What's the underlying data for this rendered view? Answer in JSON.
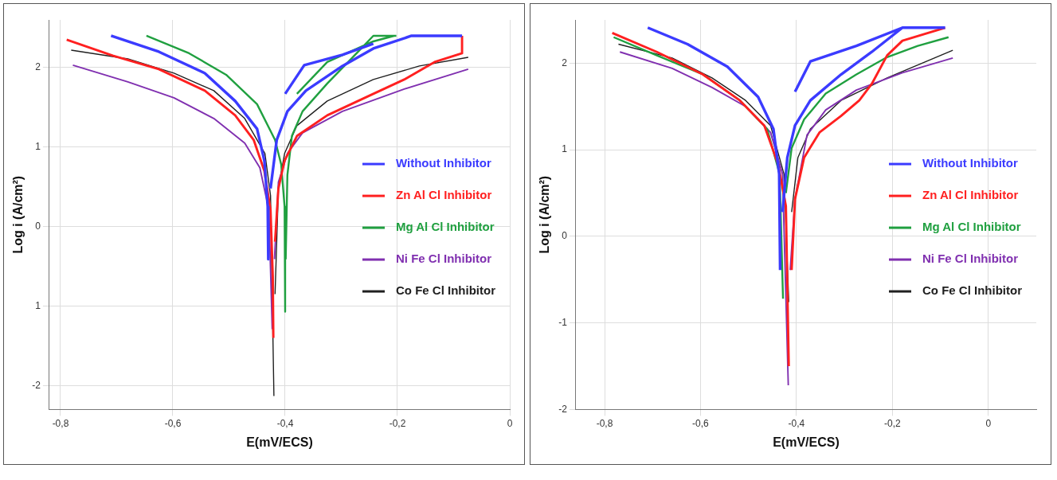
{
  "chart_data": [
    {
      "type": "line",
      "xlabel": "E(mV/ECS)",
      "ylabel": "Log i (A/cm²)",
      "xlim": [
        -0.82,
        0
      ],
      "ylim": [
        -2.3,
        2.6
      ],
      "xticks": [
        {
          "value": -0.8,
          "label": "-0,8"
        },
        {
          "value": -0.6,
          "label": "-0,6"
        },
        {
          "value": -0.4,
          "label": "-0,4"
        },
        {
          "value": -0.2,
          "label": "-0,2"
        },
        0
      ],
      "yticks": [
        2,
        1,
        0,
        {
          "value": -1,
          "label": "1"
        },
        -2
      ],
      "grid": true,
      "legend": "right",
      "series": [
        {
          "name": "Without Inhibitor",
          "color": "#3b3bff",
          "x": [
            -0.71,
            -0.625,
            -0.543,
            -0.489,
            -0.45,
            -0.437,
            -0.431,
            -0.43,
            null,
            -0.426,
            -0.415,
            -0.396,
            -0.363,
            -0.298,
            -0.243,
            -0.175,
            -0.085,
            null,
            -0.4,
            -0.366,
            -0.298,
            -0.243
          ],
          "values": [
            2.4,
            2.2,
            1.93,
            1.58,
            1.23,
            0.83,
            0.25,
            -0.41,
            null,
            0.48,
            1.09,
            1.45,
            1.71,
            2.02,
            2.24,
            2.4,
            2.4,
            null,
            1.67,
            2.03,
            2.16,
            2.3
          ]
        },
        {
          "name": "Zn Al Cl Inhibitor",
          "color": "#ff2020",
          "x": [
            -0.789,
            -0.707,
            -0.625,
            -0.543,
            -0.489,
            -0.456,
            -0.437,
            -0.426,
            -0.422,
            -0.421,
            null,
            -0.418,
            -0.412,
            -0.401,
            -0.379,
            -0.325,
            -0.243,
            -0.188,
            -0.134,
            -0.085,
            -0.085
          ],
          "values": [
            2.35,
            2.15,
            1.98,
            1.71,
            1.4,
            1.09,
            0.7,
            0.21,
            -0.63,
            -1.4,
            null,
            -0.19,
            0.48,
            0.83,
            1.14,
            1.4,
            1.67,
            1.85,
            2.07,
            2.18,
            2.4
          ]
        },
        {
          "name": "Mg Al Cl Inhibitor",
          "color": "#20a040",
          "x": [
            -0.647,
            -0.571,
            -0.505,
            -0.45,
            -0.418,
            -0.407,
            -0.401,
            -0.4,
            null,
            -0.399,
            -0.396,
            -0.388,
            -0.369,
            -0.325,
            -0.27,
            -0.243,
            -0.202,
            null,
            -0.379,
            -0.325,
            -0.243,
            -0.206
          ],
          "values": [
            2.4,
            2.18,
            1.91,
            1.54,
            1.09,
            0.78,
            0.25,
            -1.07,
            null,
            -0.41,
            0.65,
            1.14,
            1.45,
            1.8,
            2.2,
            2.4,
            2.4,
            null,
            1.67,
            2.07,
            2.33,
            2.4
          ]
        },
        {
          "name": "Ni Fe Cl Inhibitor",
          "color": "#8030b0",
          "x": [
            -0.778,
            -0.68,
            -0.598,
            -0.527,
            -0.472,
            -0.445,
            -0.429,
            -0.423,
            null,
            -0.419,
            -0.412,
            -0.396,
            -0.369,
            -0.298,
            -0.188,
            -0.074
          ],
          "values": [
            2.03,
            1.82,
            1.62,
            1.36,
            1.05,
            0.74,
            0.21,
            -1.29,
            null,
            -0.41,
            0.56,
            0.92,
            1.18,
            1.45,
            1.73,
            1.98
          ]
        },
        {
          "name": "Co Fe Cl Inhibitor",
          "color": "#202020",
          "x": [
            -0.781,
            -0.68,
            -0.598,
            -0.527,
            -0.472,
            -0.436,
            -0.426,
            -0.42,
            null,
            -0.418,
            -0.412,
            -0.401,
            -0.379,
            -0.325,
            -0.243,
            -0.161,
            -0.074
          ],
          "values": [
            2.22,
            2.11,
            1.93,
            1.71,
            1.36,
            0.92,
            0.39,
            -2.13,
            null,
            -0.85,
            0.48,
            0.92,
            1.27,
            1.58,
            1.85,
            2.02,
            2.13
          ]
        }
      ]
    },
    {
      "type": "line",
      "xlabel": "E(mV/ECS)",
      "ylabel": "Log i (A/cm²)",
      "xlim": [
        -0.86,
        0.1
      ],
      "ylim": [
        -2,
        2.5
      ],
      "xticks": [
        {
          "value": -0.8,
          "label": "-0,8"
        },
        {
          "value": -0.6,
          "label": "-0,6"
        },
        {
          "value": -0.4,
          "label": "-0,4"
        },
        {
          "value": -0.2,
          "label": "-0,2"
        },
        0
      ],
      "yticks": [
        2,
        1,
        0,
        -1,
        -2
      ],
      "grid": true,
      "legend": "right",
      "series": [
        {
          "name": "Without Inhibitor",
          "color": "#3b3bff",
          "x": [
            -0.71,
            -0.627,
            -0.544,
            -0.48,
            -0.448,
            -0.436,
            -0.434,
            null,
            -0.429,
            -0.419,
            -0.403,
            -0.371,
            -0.307,
            -0.243,
            -0.179,
            -0.09,
            null,
            -0.403,
            -0.371,
            -0.275,
            -0.179
          ],
          "values": [
            2.41,
            2.22,
            1.96,
            1.61,
            1.24,
            0.72,
            -0.39,
            null,
            0.28,
            0.91,
            1.28,
            1.57,
            1.87,
            2.13,
            2.41,
            2.41,
            null,
            1.67,
            2.02,
            2.2,
            2.41
          ]
        },
        {
          "name": "Zn Al Cl Inhibitor",
          "color": "#ff2020",
          "x": [
            -0.784,
            -0.691,
            -0.595,
            -0.518,
            -0.467,
            -0.438,
            -0.422,
            -0.416,
            null,
            -0.41,
            -0.403,
            -0.384,
            -0.352,
            -0.307,
            -0.269,
            -0.243,
            -0.211,
            -0.179,
            -0.09
          ],
          "values": [
            2.35,
            2.13,
            1.87,
            1.57,
            1.28,
            0.83,
            0.35,
            -1.5,
            null,
            -0.39,
            0.43,
            0.91,
            1.2,
            1.39,
            1.57,
            1.76,
            2.09,
            2.26,
            2.41
          ]
        },
        {
          "name": "Mg Al Cl Inhibitor",
          "color": "#20a040",
          "x": [
            -0.781,
            -0.691,
            -0.595,
            -0.518,
            -0.461,
            -0.435,
            -0.428,
            null,
            -0.422,
            -0.41,
            -0.384,
            -0.339,
            -0.275,
            -0.211,
            -0.147,
            -0.083
          ],
          "values": [
            2.3,
            2.09,
            1.87,
            1.57,
            1.24,
            0.72,
            -0.72,
            null,
            0.5,
            1.02,
            1.35,
            1.65,
            1.87,
            2.07,
            2.2,
            2.3
          ]
        },
        {
          "name": "Ni Fe Cl Inhibitor",
          "color": "#8030b0",
          "x": [
            -0.768,
            -0.659,
            -0.576,
            -0.506,
            -0.454,
            -0.429,
            -0.417,
            null,
            -0.413,
            -0.403,
            -0.378,
            -0.339,
            -0.275,
            -0.179,
            -0.074
          ],
          "values": [
            2.13,
            1.94,
            1.72,
            1.5,
            1.2,
            0.72,
            -1.72,
            null,
            -0.39,
            0.43,
            1.17,
            1.46,
            1.69,
            1.89,
            2.06
          ]
        },
        {
          "name": "Co Fe Cl Inhibitor",
          "color": "#202020",
          "x": [
            -0.771,
            -0.659,
            -0.576,
            -0.506,
            -0.454,
            -0.426,
            -0.416,
            null,
            -0.41,
            -0.397,
            -0.371,
            -0.307,
            -0.211,
            -0.074
          ],
          "values": [
            2.22,
            2.06,
            1.83,
            1.57,
            1.28,
            0.72,
            -0.76,
            null,
            0.28,
            0.91,
            1.24,
            1.57,
            1.83,
            2.15
          ]
        }
      ]
    }
  ]
}
